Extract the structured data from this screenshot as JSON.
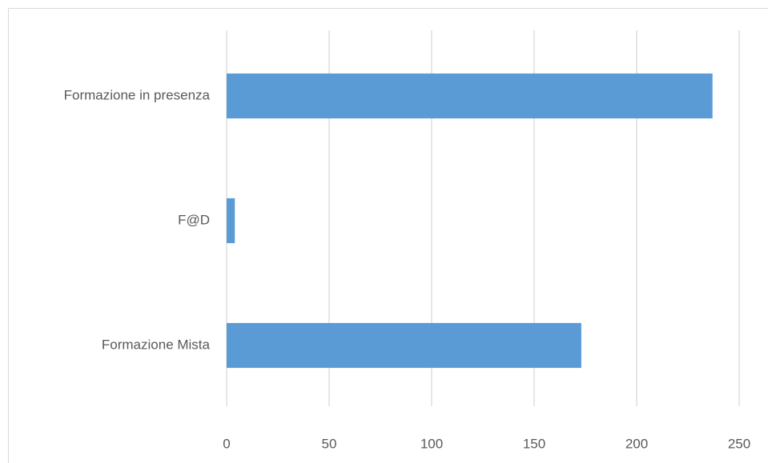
{
  "chart_data": {
    "type": "bar",
    "orientation": "horizontal",
    "categories": [
      "Formazione in presenza",
      "F@D",
      "Formazione Mista"
    ],
    "values": [
      237,
      4,
      173
    ],
    "color": "#5b9bd5",
    "xlim": [
      0,
      250
    ],
    "xticks": [
      0,
      50,
      100,
      150,
      200,
      250
    ],
    "grid": true
  }
}
